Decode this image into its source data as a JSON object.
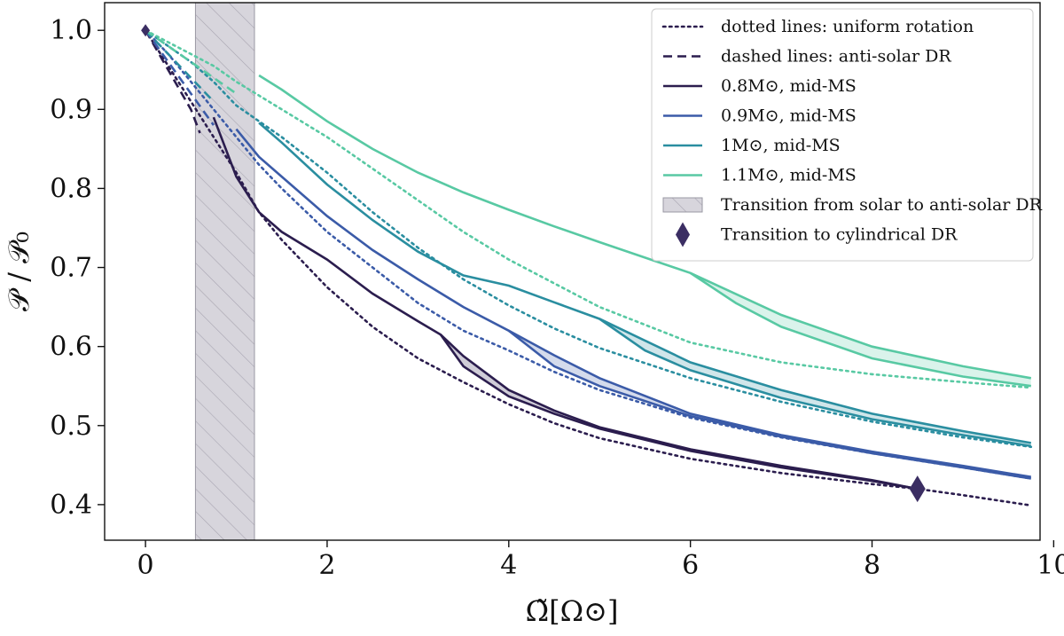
{
  "chart_data": {
    "type": "line",
    "xlabel": "Ω̃[Ω⊙]",
    "ylabel": "𝒫 / 𝒫₀",
    "xlim": [
      -0.45,
      9.85
    ],
    "ylim": [
      0.355,
      1.035
    ],
    "x_ticks": [
      0,
      2,
      4,
      6,
      8,
      10
    ],
    "y_ticks": [
      0.4,
      0.5,
      0.6,
      0.7,
      0.8,
      0.9,
      1.0
    ],
    "x_tick_labels": [
      "0",
      "2",
      "4",
      "6",
      "8",
      "10"
    ],
    "y_tick_labels": [
      "0.4",
      "0.5",
      "0.6",
      "0.7",
      "0.8",
      "0.9",
      "1.0"
    ],
    "transition_band": {
      "x_range": [
        0.55,
        1.2
      ],
      "color": "#c9c7cf"
    },
    "cylindrical_transition": {
      "x": 8.5,
      "y": 0.42,
      "color": "#3b2e63"
    },
    "series": [
      {
        "name": "0.8M⊙, mid-MS",
        "color": "#2b1d4e",
        "uniform": [
          [
            0.0,
            1.0
          ],
          [
            0.25,
            0.955
          ],
          [
            0.5,
            0.91
          ],
          [
            0.75,
            0.865
          ],
          [
            1.0,
            0.82
          ],
          [
            1.25,
            0.77
          ],
          [
            1.5,
            0.735
          ],
          [
            2.0,
            0.675
          ],
          [
            2.5,
            0.625
          ],
          [
            3.0,
            0.585
          ],
          [
            3.5,
            0.555
          ],
          [
            4.0,
            0.527
          ],
          [
            4.5,
            0.503
          ],
          [
            5.0,
            0.484
          ],
          [
            6.0,
            0.458
          ],
          [
            7.0,
            0.44
          ],
          [
            8.0,
            0.426
          ],
          [
            8.5,
            0.42
          ],
          [
            9.0,
            0.412
          ],
          [
            9.75,
            0.399
          ]
        ],
        "antisolar": [
          [
            0.0,
            1.0
          ],
          [
            0.25,
            0.95
          ],
          [
            0.5,
            0.9
          ],
          [
            0.6,
            0.87
          ]
        ],
        "upper": [
          [
            0.75,
            0.89
          ],
          [
            1.0,
            0.815
          ],
          [
            1.25,
            0.77
          ],
          [
            1.5,
            0.745
          ],
          [
            2.0,
            0.71
          ],
          [
            2.5,
            0.667
          ],
          [
            3.0,
            0.632
          ],
          [
            3.25,
            0.615
          ],
          [
            3.5,
            0.588
          ],
          [
            4.0,
            0.545
          ],
          [
            4.5,
            0.519
          ],
          [
            5.0,
            0.498
          ],
          [
            6.0,
            0.47
          ],
          [
            7.0,
            0.449
          ],
          [
            8.0,
            0.431
          ],
          [
            8.5,
            0.42
          ]
        ],
        "lower": [
          [
            3.25,
            0.615
          ],
          [
            3.5,
            0.575
          ],
          [
            4.0,
            0.537
          ],
          [
            4.5,
            0.515
          ],
          [
            5.0,
            0.496
          ],
          [
            6.0,
            0.468
          ],
          [
            7.0,
            0.447
          ],
          [
            8.0,
            0.43
          ],
          [
            8.5,
            0.42
          ]
        ]
      },
      {
        "name": "0.9M⊙, mid-MS",
        "color": "#3b5ba8",
        "uniform": [
          [
            0.0,
            1.0
          ],
          [
            0.25,
            0.97
          ],
          [
            0.5,
            0.935
          ],
          [
            0.75,
            0.9
          ],
          [
            1.0,
            0.865
          ],
          [
            1.25,
            0.83
          ],
          [
            1.5,
            0.8
          ],
          [
            2.0,
            0.745
          ],
          [
            2.5,
            0.7
          ],
          [
            3.0,
            0.655
          ],
          [
            3.5,
            0.62
          ],
          [
            4.0,
            0.595
          ],
          [
            4.5,
            0.568
          ],
          [
            5.0,
            0.545
          ],
          [
            6.0,
            0.51
          ],
          [
            7.0,
            0.485
          ],
          [
            8.0,
            0.465
          ],
          [
            9.0,
            0.447
          ],
          [
            9.75,
            0.433
          ]
        ],
        "antisolar": [
          [
            0.0,
            1.0
          ],
          [
            0.25,
            0.96
          ],
          [
            0.5,
            0.92
          ],
          [
            0.75,
            0.88
          ]
        ],
        "upper": [
          [
            1.0,
            0.875
          ],
          [
            1.25,
            0.84
          ],
          [
            1.5,
            0.815
          ],
          [
            2.0,
            0.765
          ],
          [
            2.5,
            0.722
          ],
          [
            3.0,
            0.685
          ],
          [
            3.5,
            0.65
          ],
          [
            4.0,
            0.62
          ],
          [
            4.5,
            0.589
          ],
          [
            5.0,
            0.56
          ],
          [
            6.0,
            0.515
          ],
          [
            7.0,
            0.488
          ],
          [
            8.0,
            0.467
          ],
          [
            9.0,
            0.449
          ],
          [
            9.75,
            0.435
          ]
        ],
        "lower": [
          [
            4.0,
            0.62
          ],
          [
            4.5,
            0.575
          ],
          [
            5.0,
            0.55
          ],
          [
            6.0,
            0.512
          ],
          [
            7.0,
            0.486
          ],
          [
            8.0,
            0.465
          ],
          [
            9.0,
            0.447
          ],
          [
            9.75,
            0.433
          ]
        ]
      },
      {
        "name": "1M⊙, mid-MS",
        "color": "#2a8ea0",
        "uniform": [
          [
            0.0,
            1.0
          ],
          [
            0.25,
            0.98
          ],
          [
            0.5,
            0.96
          ],
          [
            0.75,
            0.935
          ],
          [
            1.0,
            0.905
          ],
          [
            1.5,
            0.865
          ],
          [
            2.0,
            0.82
          ],
          [
            2.5,
            0.77
          ],
          [
            3.0,
            0.725
          ],
          [
            3.5,
            0.685
          ],
          [
            4.0,
            0.652
          ],
          [
            4.5,
            0.623
          ],
          [
            5.0,
            0.598
          ],
          [
            6.0,
            0.56
          ],
          [
            7.0,
            0.53
          ],
          [
            8.0,
            0.505
          ],
          [
            9.0,
            0.485
          ],
          [
            9.75,
            0.473
          ]
        ],
        "antisolar": [
          [
            0.0,
            1.0
          ],
          [
            0.25,
            0.97
          ],
          [
            0.5,
            0.94
          ],
          [
            0.75,
            0.91
          ]
        ],
        "upper": [
          [
            1.25,
            0.883
          ],
          [
            1.5,
            0.858
          ],
          [
            2.0,
            0.805
          ],
          [
            2.5,
            0.76
          ],
          [
            3.0,
            0.72
          ],
          [
            3.5,
            0.69
          ],
          [
            4.0,
            0.677
          ],
          [
            4.5,
            0.656
          ],
          [
            5.0,
            0.635
          ],
          [
            6.0,
            0.58
          ],
          [
            7.0,
            0.545
          ],
          [
            8.0,
            0.515
          ],
          [
            9.0,
            0.493
          ],
          [
            9.75,
            0.478
          ]
        ],
        "lower": [
          [
            5.0,
            0.635
          ],
          [
            5.5,
            0.595
          ],
          [
            6.0,
            0.57
          ],
          [
            7.0,
            0.535
          ],
          [
            8.0,
            0.508
          ],
          [
            9.0,
            0.488
          ],
          [
            9.75,
            0.474
          ]
        ]
      },
      {
        "name": "1.1M⊙, mid-MS",
        "color": "#58c9a3",
        "uniform": [
          [
            0.0,
            1.0
          ],
          [
            0.25,
            0.985
          ],
          [
            0.5,
            0.97
          ],
          [
            0.75,
            0.955
          ],
          [
            1.0,
            0.935
          ],
          [
            1.5,
            0.9
          ],
          [
            2.0,
            0.865
          ],
          [
            2.5,
            0.825
          ],
          [
            3.0,
            0.785
          ],
          [
            3.5,
            0.745
          ],
          [
            4.0,
            0.71
          ],
          [
            4.5,
            0.68
          ],
          [
            5.0,
            0.65
          ],
          [
            6.0,
            0.605
          ],
          [
            7.0,
            0.58
          ],
          [
            8.0,
            0.565
          ],
          [
            9.0,
            0.555
          ],
          [
            9.75,
            0.548
          ]
        ],
        "antisolar": [
          [
            0.0,
            1.0
          ],
          [
            0.25,
            0.98
          ],
          [
            0.5,
            0.96
          ],
          [
            0.75,
            0.94
          ],
          [
            1.0,
            0.92
          ]
        ],
        "upper": [
          [
            1.25,
            0.943
          ],
          [
            1.5,
            0.925
          ],
          [
            2.0,
            0.885
          ],
          [
            2.5,
            0.85
          ],
          [
            3.0,
            0.82
          ],
          [
            3.5,
            0.795
          ],
          [
            4.0,
            0.773
          ],
          [
            4.5,
            0.752
          ],
          [
            5.0,
            0.732
          ],
          [
            6.0,
            0.693
          ],
          [
            7.0,
            0.64
          ],
          [
            8.0,
            0.6
          ],
          [
            9.0,
            0.575
          ],
          [
            9.75,
            0.56
          ]
        ],
        "lower": [
          [
            6.0,
            0.693
          ],
          [
            6.5,
            0.655
          ],
          [
            7.0,
            0.625
          ],
          [
            8.0,
            0.585
          ],
          [
            9.0,
            0.562
          ],
          [
            9.75,
            0.55
          ]
        ]
      }
    ],
    "legend": {
      "placement": "top-right",
      "entries": [
        {
          "label": "dotted lines: uniform rotation",
          "style": "dotted",
          "color": "#2b1d4e"
        },
        {
          "label": "dashed lines: anti-solar DR",
          "style": "dashed",
          "color": "#2b1d4e"
        },
        {
          "label": "0.8M⊙, mid-MS",
          "style": "solid",
          "color": "#2b1d4e"
        },
        {
          "label": "0.9M⊙, mid-MS",
          "style": "solid",
          "color": "#3b5ba8"
        },
        {
          "label": "1M⊙, mid-MS",
          "style": "solid",
          "color": "#2a8ea0"
        },
        {
          "label": "1.1M⊙, mid-MS",
          "style": "solid",
          "color": "#58c9a3"
        },
        {
          "label": "Transition from solar to anti-solar DR",
          "style": "hatch",
          "color": "#c9c7cf"
        },
        {
          "label": "Transition to cylindrical DR",
          "style": "diamond",
          "color": "#3b2e63"
        }
      ]
    }
  }
}
